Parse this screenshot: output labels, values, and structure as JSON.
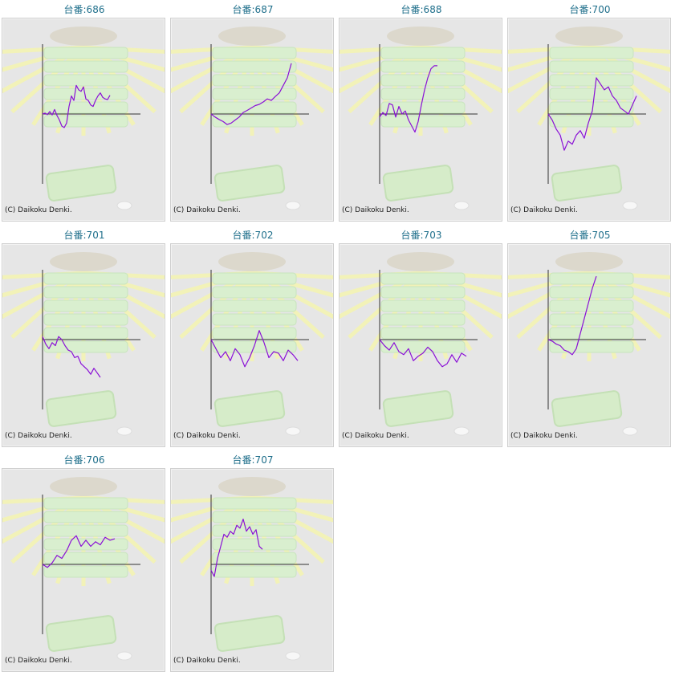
{
  "colors": {
    "title": "#1f6f8b",
    "line": "#8a10d6",
    "axis": "#333333",
    "panel_bg": "#e6e6e6"
  },
  "copyright": "(C) Daikoku Denki.",
  "chart_data": [
    {
      "type": "line",
      "title": "台番:686",
      "x": [
        0,
        3,
        6,
        9,
        12,
        15,
        18,
        21,
        24,
        27,
        30,
        33,
        36,
        39,
        42,
        45,
        48,
        51,
        54,
        57,
        60,
        63,
        66,
        69,
        72,
        75,
        78,
        81,
        84
      ],
      "values": [
        0,
        3,
        -2,
        8,
        -3,
        15,
        -5,
        -20,
        -40,
        -45,
        -30,
        25,
        60,
        45,
        95,
        80,
        75,
        90,
        50,
        45,
        30,
        25,
        45,
        60,
        70,
        55,
        50,
        48,
        62
      ],
      "ylim": [
        -220,
        220
      ]
    },
    {
      "type": "line",
      "title": "台番:687",
      "x": [
        0,
        5,
        10,
        15,
        20,
        25,
        30,
        35,
        40,
        45,
        50,
        55,
        60,
        65,
        70,
        75,
        80,
        85,
        90,
        95,
        100
      ],
      "values": [
        0,
        -10,
        -18,
        -25,
        -35,
        -30,
        -20,
        -10,
        5,
        12,
        20,
        28,
        32,
        40,
        50,
        45,
        58,
        70,
        95,
        120,
        168
      ],
      "ylim": [
        -220,
        220
      ]
    },
    {
      "type": "line",
      "title": "台番:688",
      "x": [
        0,
        4,
        8,
        12,
        16,
        20,
        24,
        28,
        32,
        36,
        40,
        44,
        48,
        52,
        56,
        60,
        64,
        68,
        72
      ],
      "values": [
        -10,
        5,
        -5,
        35,
        30,
        -10,
        25,
        0,
        10,
        -20,
        -40,
        -60,
        -25,
        30,
        80,
        120,
        150,
        160,
        160
      ],
      "ylim": [
        -220,
        220
      ]
    },
    {
      "type": "line",
      "title": "台番:700",
      "x": [
        0,
        5,
        10,
        15,
        20,
        25,
        30,
        35,
        40,
        45,
        50,
        55,
        60,
        65,
        70,
        75,
        80,
        85,
        90,
        95,
        100,
        105,
        110
      ],
      "values": [
        0,
        -20,
        -50,
        -70,
        -120,
        -90,
        -100,
        -70,
        -55,
        -80,
        -30,
        10,
        120,
        100,
        80,
        90,
        60,
        45,
        20,
        10,
        0,
        30,
        60
      ],
      "ylim": [
        -220,
        220
      ]
    },
    {
      "type": "line",
      "title": "台番:701",
      "x": [
        0,
        4,
        8,
        12,
        16,
        20,
        24,
        28,
        32,
        36,
        40,
        44,
        48,
        52,
        56,
        60,
        64,
        68,
        72
      ],
      "values": [
        10,
        -15,
        -30,
        -10,
        -20,
        10,
        0,
        -20,
        -35,
        -40,
        -60,
        -55,
        -80,
        -90,
        -100,
        -115,
        -95,
        -110,
        -125
      ],
      "ylim": [
        -220,
        220
      ]
    },
    {
      "type": "line",
      "title": "台番:702",
      "x": [
        0,
        6,
        12,
        18,
        24,
        30,
        36,
        42,
        48,
        54,
        60,
        66,
        72,
        78,
        84,
        90,
        96,
        102,
        108
      ],
      "values": [
        0,
        -30,
        -60,
        -40,
        -70,
        -30,
        -50,
        -90,
        -60,
        -20,
        30,
        -10,
        -60,
        -40,
        -45,
        -70,
        -35,
        -50,
        -70
      ],
      "ylim": [
        -220,
        220
      ]
    },
    {
      "type": "line",
      "title": "台番:703",
      "x": [
        0,
        6,
        12,
        18,
        24,
        30,
        36,
        42,
        48,
        54,
        60,
        66,
        72,
        78,
        84,
        90,
        96,
        102,
        108
      ],
      "values": [
        0,
        -20,
        -35,
        -10,
        -40,
        -50,
        -30,
        -70,
        -55,
        -45,
        -25,
        -40,
        -70,
        -90,
        -80,
        -50,
        -75,
        -45,
        -55
      ],
      "ylim": [
        -220,
        220
      ]
    },
    {
      "type": "line",
      "title": "台番:705",
      "x": [
        0,
        5,
        10,
        15,
        20,
        25,
        30,
        35,
        40,
        45,
        50,
        55,
        60
      ],
      "values": [
        0,
        -5,
        -15,
        -20,
        -35,
        -40,
        -50,
        -30,
        20,
        70,
        120,
        170,
        210
      ],
      "ylim": [
        -220,
        220
      ]
    },
    {
      "type": "line",
      "title": "台番:706",
      "x": [
        0,
        6,
        12,
        18,
        24,
        30,
        36,
        42,
        48,
        54,
        60,
        66,
        72,
        78,
        84,
        90
      ],
      "values": [
        0,
        -10,
        5,
        30,
        20,
        45,
        80,
        95,
        60,
        80,
        60,
        75,
        65,
        90,
        80,
        85
      ],
      "ylim": [
        -220,
        220
      ]
    },
    {
      "type": "line",
      "title": "台番:707",
      "x": [
        0,
        4,
        8,
        12,
        16,
        20,
        24,
        28,
        32,
        36,
        40,
        44,
        48,
        52,
        56,
        60,
        64
      ],
      "values": [
        -20,
        -40,
        20,
        60,
        100,
        90,
        110,
        100,
        130,
        120,
        150,
        110,
        125,
        100,
        115,
        60,
        50
      ],
      "ylim": [
        -220,
        220
      ]
    }
  ]
}
